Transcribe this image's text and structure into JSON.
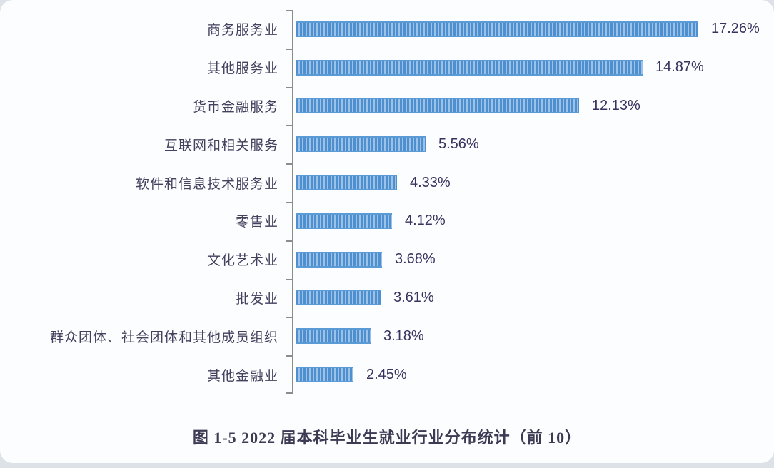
{
  "page": {
    "caption": "图 1-5   2022 届本科毕业生就业行业分布统计（前 10）"
  },
  "chart_data": {
    "type": "bar",
    "orientation": "horizontal",
    "title": "图 1-5 2022 届本科毕业生就业行业分布统计（前 10）",
    "xlabel": "",
    "ylabel": "",
    "categories": [
      "商务服务业",
      "其他服务业",
      "货币金融服务",
      "互联网和相关服务",
      "软件和信息技术服务业",
      "零售业",
      "文化艺术业",
      "批发业",
      "群众团体、社会团体和其他成员组织",
      "其他金融业"
    ],
    "values": [
      17.26,
      14.87,
      12.13,
      5.56,
      4.33,
      4.12,
      3.68,
      3.61,
      3.18,
      2.45
    ],
    "value_labels": [
      "17.26%",
      "14.87%",
      "12.13%",
      "5.56%",
      "4.33%",
      "4.12%",
      "3.68%",
      "3.61%",
      "3.18%",
      "2.45%"
    ],
    "xlim": [
      0,
      18.5
    ],
    "grid": false,
    "legend": null,
    "data_labels_shown": true,
    "colors": {
      "bar_base": "#5b9bd5",
      "bar_stripe_dark": "#4e8fd0",
      "bar_stripe_light": "#9cc2e8",
      "axis": "#8c8c8c",
      "category_text": "#44405e",
      "value_text": "#39325f",
      "caption_text": "#3d3a54",
      "card_background": "#fcfdfe",
      "page_background": "#dde2e8"
    }
  }
}
